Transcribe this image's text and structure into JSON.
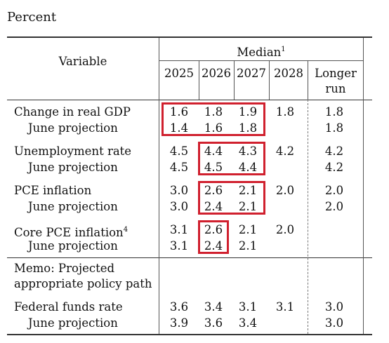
{
  "caption": "Percent",
  "header": {
    "variable": "Variable",
    "median": "Median",
    "median_note": "1",
    "years": [
      "2025",
      "2026",
      "2027",
      "2028"
    ],
    "longer_run": [
      "Longer",
      "run"
    ]
  },
  "rows": [
    {
      "label": "Change in real GDP",
      "note": "",
      "vals": [
        "1.6",
        "1.8",
        "1.9",
        "1.8",
        "1.8"
      ]
    },
    {
      "label": "June projection",
      "note": "",
      "vals": [
        "1.4",
        "1.6",
        "1.8",
        "",
        "1.8"
      ]
    },
    {
      "label": "Unemployment rate",
      "note": "",
      "vals": [
        "4.5",
        "4.4",
        "4.3",
        "4.2",
        "4.2"
      ]
    },
    {
      "label": "June projection",
      "note": "",
      "vals": [
        "4.5",
        "4.5",
        "4.4",
        "",
        "4.2"
      ]
    },
    {
      "label": "PCE inflation",
      "note": "",
      "vals": [
        "3.0",
        "2.6",
        "2.1",
        "2.0",
        "2.0"
      ]
    },
    {
      "label": "June projection",
      "note": "",
      "vals": [
        "3.0",
        "2.4",
        "2.1",
        "",
        "2.0"
      ]
    },
    {
      "label": "Core PCE inflation",
      "note": "4",
      "vals": [
        "3.1",
        "2.6",
        "2.1",
        "2.0",
        ""
      ]
    },
    {
      "label": "June projection",
      "note": "",
      "vals": [
        "3.1",
        "2.4",
        "2.1",
        "",
        ""
      ]
    },
    {
      "label": "Federal funds rate",
      "note": "",
      "vals": [
        "3.6",
        "3.4",
        "3.1",
        "3.1",
        "3.0"
      ]
    },
    {
      "label": "June projection",
      "note": "",
      "vals": [
        "3.9",
        "3.6",
        "3.4",
        "",
        "3.0"
      ]
    }
  ],
  "memo": [
    "Memo: Projected",
    "appropriate policy path"
  ],
  "colors": {
    "highlight": "#d0202e",
    "rule": "#333333"
  }
}
